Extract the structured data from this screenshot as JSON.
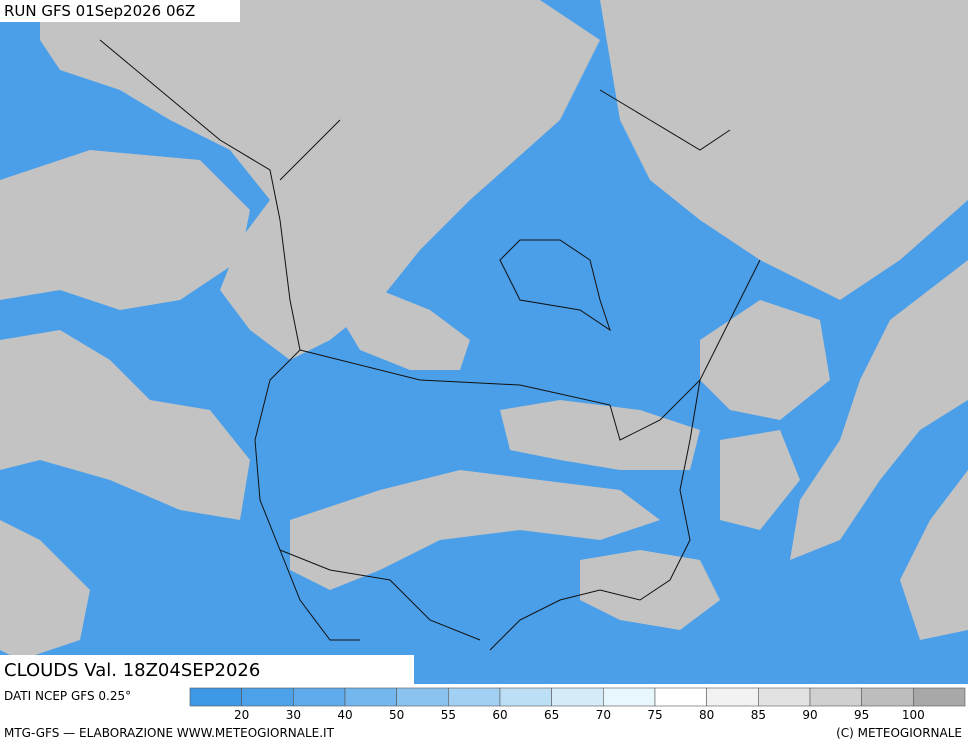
{
  "header": {
    "title": "RUN GFS 01Sep2026 06Z"
  },
  "caption": {
    "title": "CLOUDS Val. 18Z04SEP2026"
  },
  "legend": {
    "source": "DATI NCEP GFS 0.25°",
    "colors": [
      "#3d98e6",
      "#4da1e8",
      "#5eaaeb",
      "#74b6ee",
      "#8ac2f0",
      "#a2d0f3",
      "#bcdff6",
      "#d4ecf8",
      "#e8f7fc",
      "#ffffff",
      "#f2f2f2",
      "#e2e2e2",
      "#d0d0d0",
      "#bdbdbd",
      "#a8a8a8"
    ],
    "labels": [
      20,
      30,
      40,
      50,
      55,
      60,
      65,
      70,
      75,
      80,
      85,
      90,
      95,
      100
    ]
  },
  "footer": {
    "left": "MTG-GFS — ELABORAZIONE WWW.METEOGIORNALE.IT",
    "right": "(C) METEOGIORNALE"
  }
}
